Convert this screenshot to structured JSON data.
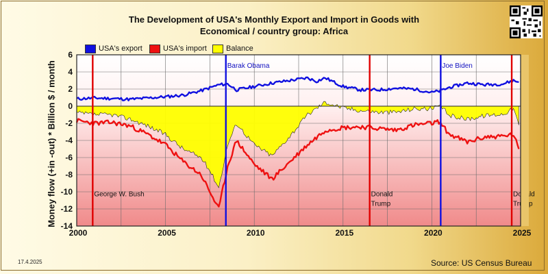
{
  "title_line1": "The Development of USA's Monthly Export and Import in Goods with",
  "title_line2": "Economical / country group: Africa",
  "ylabel": "Money flow (+in -out) * Billion $ / month",
  "legend": [
    {
      "label": "USA's export",
      "color": "#1010e0"
    },
    {
      "label": "USA's import",
      "color": "#ee1111"
    },
    {
      "label": "Balance",
      "color": "#ffff00"
    }
  ],
  "date_stamp": "17.4.2025",
  "source": "Source: US Census Bureau",
  "chart_data": {
    "type": "line",
    "title": "The Development of USA's Monthly Export and Import in Goods with Economical / country group: Africa",
    "ylabel": "Money flow (+in -out) * Billion $ / month",
    "xlabel": "",
    "xlim": [
      2000,
      2025
    ],
    "ylim": [
      -14,
      6
    ],
    "yticks": [
      6,
      4,
      2,
      0,
      -2,
      -4,
      -6,
      -8,
      -10,
      -12,
      -14
    ],
    "xticks": [
      2000,
      2005,
      2010,
      2015,
      2020,
      2025
    ],
    "grid": true,
    "legend_position": "top-left",
    "series": [
      {
        "name": "USA's export",
        "color": "#1010e0",
        "points": [
          [
            2000,
            0.85
          ],
          [
            2001,
            0.95
          ],
          [
            2002,
            0.9
          ],
          [
            2003,
            0.8
          ],
          [
            2004,
            0.95
          ],
          [
            2005,
            1.1
          ],
          [
            2006,
            1.3
          ],
          [
            2007,
            1.8
          ],
          [
            2008,
            2.5
          ],
          [
            2008.5,
            2.6
          ],
          [
            2009,
            1.9
          ],
          [
            2010,
            2.3
          ],
          [
            2011,
            2.7
          ],
          [
            2012,
            3.0
          ],
          [
            2013,
            3.3
          ],
          [
            2013.5,
            2.9
          ],
          [
            2014,
            3.3
          ],
          [
            2015,
            2.3
          ],
          [
            2016,
            1.9
          ],
          [
            2017,
            1.9
          ],
          [
            2018,
            2.1
          ],
          [
            2019,
            2.0
          ],
          [
            2020,
            1.6
          ],
          [
            2020.5,
            1.8
          ],
          [
            2021,
            2.2
          ],
          [
            2022,
            2.7
          ],
          [
            2023,
            2.5
          ],
          [
            2024,
            2.6
          ],
          [
            2024.6,
            3.0
          ],
          [
            2024.9,
            2.8
          ]
        ]
      },
      {
        "name": "USA's import",
        "color": "#ee1111",
        "points": [
          [
            2000,
            -1.7
          ],
          [
            2001,
            -2.0
          ],
          [
            2002,
            -1.9
          ],
          [
            2003,
            -2.3
          ],
          [
            2004,
            -3.3
          ],
          [
            2005,
            -4.5
          ],
          [
            2006,
            -6.5
          ],
          [
            2007,
            -8.0
          ],
          [
            2007.5,
            -10.0
          ],
          [
            2008,
            -12.0
          ],
          [
            2008.5,
            -7.0
          ],
          [
            2009,
            -4.0
          ],
          [
            2010,
            -6.8
          ],
          [
            2011,
            -8.5
          ],
          [
            2012,
            -6.5
          ],
          [
            2013,
            -4.5
          ],
          [
            2014,
            -2.8
          ],
          [
            2015,
            -2.5
          ],
          [
            2016,
            -2.4
          ],
          [
            2017,
            -2.6
          ],
          [
            2018,
            -2.8
          ],
          [
            2019,
            -2.2
          ],
          [
            2020,
            -2.0
          ],
          [
            2020.4,
            -1.8
          ],
          [
            2021,
            -3.3
          ],
          [
            2022,
            -4.2
          ],
          [
            2023,
            -3.6
          ],
          [
            2024,
            -3.5
          ],
          [
            2024.6,
            -3.3
          ],
          [
            2024.9,
            -5.0
          ]
        ]
      },
      {
        "name": "Balance",
        "color": "#ffff00",
        "points": [
          [
            2000,
            -0.8
          ],
          [
            2001,
            -1.0
          ],
          [
            2002,
            -1.0
          ],
          [
            2003,
            -1.5
          ],
          [
            2004,
            -2.3
          ],
          [
            2005,
            -3.3
          ],
          [
            2006,
            -5.0
          ],
          [
            2007,
            -6.0
          ],
          [
            2007.5,
            -7.5
          ],
          [
            2008,
            -9.5
          ],
          [
            2008.5,
            -4.5
          ],
          [
            2009,
            -2.0
          ],
          [
            2010,
            -4.5
          ],
          [
            2011,
            -5.8
          ],
          [
            2012,
            -3.5
          ],
          [
            2013,
            -1.0
          ],
          [
            2014,
            0.5
          ],
          [
            2015,
            -0.2
          ],
          [
            2016,
            -0.5
          ],
          [
            2017,
            -0.7
          ],
          [
            2018,
            -0.7
          ],
          [
            2019,
            -0.3
          ],
          [
            2020,
            -0.3
          ],
          [
            2020.5,
            0.0
          ],
          [
            2021,
            -1.1
          ],
          [
            2022,
            -1.5
          ],
          [
            2023,
            -1.1
          ],
          [
            2024,
            -0.9
          ],
          [
            2024.6,
            -0.3
          ],
          [
            2024.9,
            -2.2
          ]
        ]
      }
    ],
    "presidents": [
      {
        "x": 2000.9,
        "label": "George W. Bush",
        "color": "#e00000",
        "label_color": "#111111",
        "label_y": -10.5
      },
      {
        "x": 2008.4,
        "label": "Barak Obama",
        "color": "#1010e0",
        "label_color": "#1010c0",
        "label_y": 4.5
      },
      {
        "x": 2016.5,
        "label": "Donald Trump",
        "color": "#e00000",
        "label_color": "#111111",
        "label_y": -10.5
      },
      {
        "x": 2020.5,
        "label": "Joe Biden",
        "color": "#1010e0",
        "label_color": "#1010c0",
        "label_y": 4.5
      },
      {
        "x": 2024.5,
        "label": "Donald Trump",
        "color": "#e00000",
        "label_color": "#111111",
        "label_y": -10.5
      }
    ]
  }
}
